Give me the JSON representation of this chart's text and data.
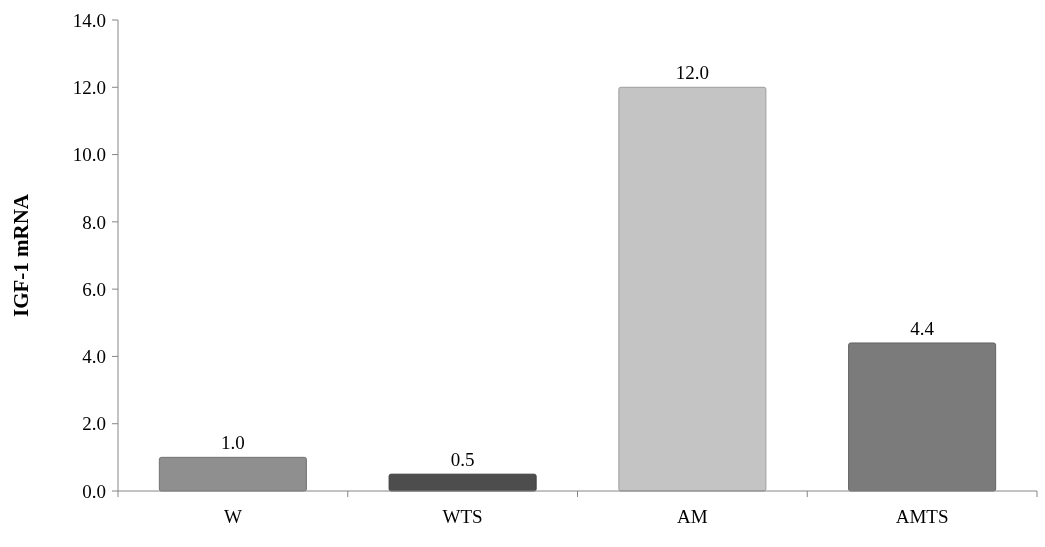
{
  "chart_data": {
    "type": "bar",
    "ylabel": "IGF-1 mRNA",
    "categories": [
      "W",
      "WTS",
      "AM",
      "AMTS"
    ],
    "values": [
      1.0,
      0.5,
      12.0,
      4.4
    ],
    "colors": [
      "#8f8f8f",
      "#4d4d4d",
      "#c4c4c4",
      "#7b7b7b"
    ],
    "value_labels": [
      "1.0",
      "0.5",
      "12.0",
      "4.4"
    ],
    "ylim": [
      0,
      14
    ],
    "yticks": [
      {
        "value": 0,
        "label": "0.0"
      },
      {
        "value": 2,
        "label": "2.0"
      },
      {
        "value": 4,
        "label": "4.0"
      },
      {
        "value": 6,
        "label": "6.0"
      },
      {
        "value": 8,
        "label": "8.0"
      },
      {
        "value": 10,
        "label": "10.0"
      },
      {
        "value": 12,
        "label": "12.0"
      },
      {
        "value": 14,
        "label": "14.0"
      }
    ],
    "grid": false
  }
}
